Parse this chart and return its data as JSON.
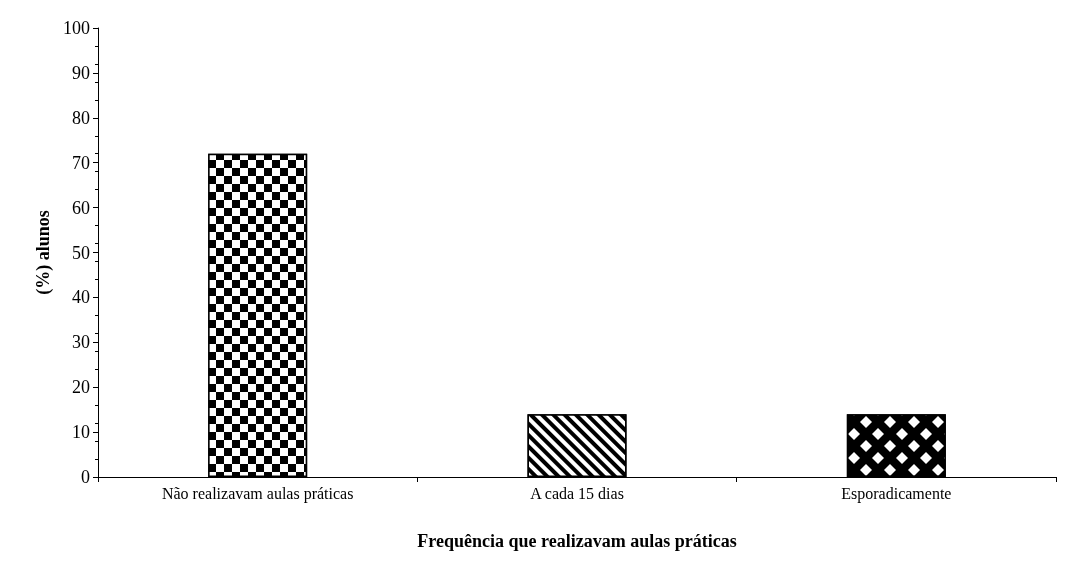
{
  "chart_data": {
    "type": "bar",
    "xlabel": "Frequência que realizavam aulas práticas",
    "ylabel": "(%) alunos",
    "categories": [
      "Não realizavam aulas práticas",
      "A cada 15 dias",
      "Esporadicamente"
    ],
    "values": [
      72,
      14,
      14
    ],
    "colors": [
      "#000000",
      "#000000",
      "#000000"
    ],
    "ylim": [
      0,
      100
    ],
    "yticks": [
      0,
      10,
      20,
      30,
      40,
      50,
      60,
      70,
      80,
      90,
      100
    ],
    "grid": false
  }
}
